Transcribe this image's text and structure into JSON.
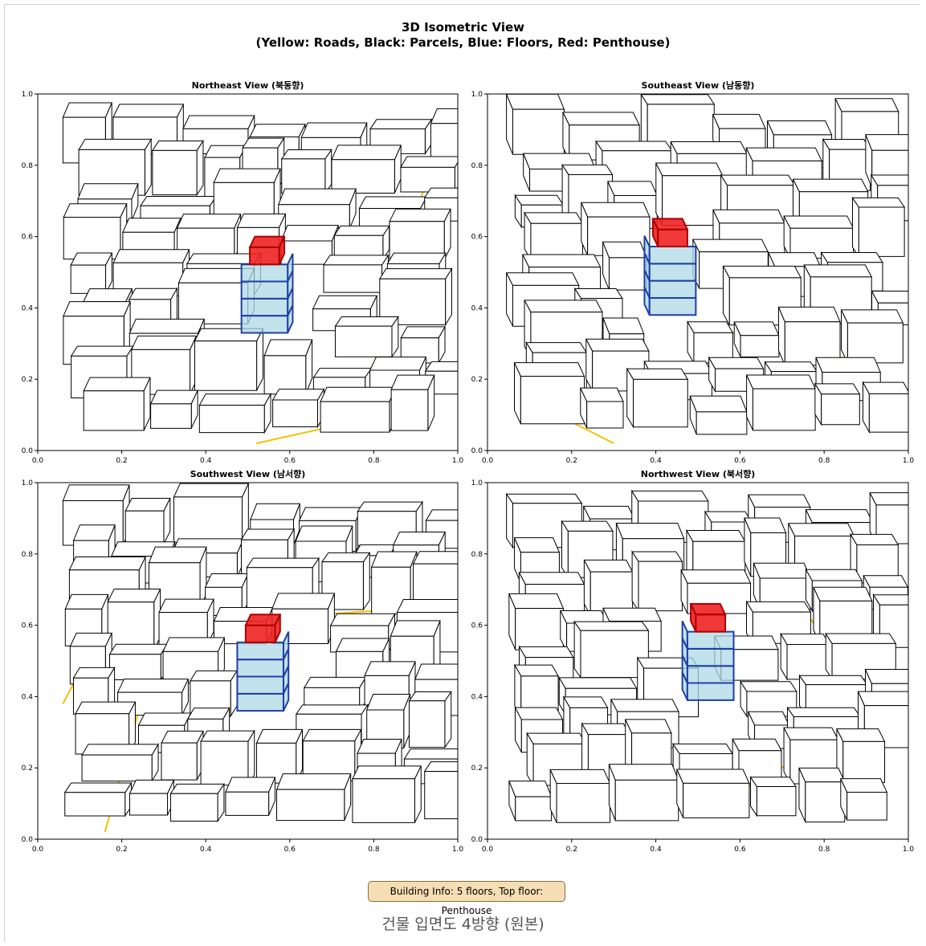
{
  "figure": {
    "title_line1": "3D Isometric View",
    "title_line2": "(Yellow: Roads, Black: Parcels, Blue: Floors, Red: Penthouse)"
  },
  "panels": [
    {
      "title": "Northeast View (북동향)"
    },
    {
      "title": "Southeast View (남동향)"
    },
    {
      "title": "Southwest View (남서향)"
    },
    {
      "title": "Northwest View (북서향)"
    }
  ],
  "axes": {
    "x_ticks": [
      "0.0",
      "0.2",
      "0.4",
      "0.6",
      "0.8",
      "1.0"
    ],
    "y_ticks": [
      "0.0",
      "0.2",
      "0.4",
      "0.6",
      "0.8",
      "1.0"
    ],
    "xlim": [
      0,
      1
    ],
    "ylim": [
      0,
      1
    ]
  },
  "colors": {
    "roads": "#f2c200",
    "parcels": "#000000",
    "floors_fill": "#add8e6",
    "floors_edge": "#1f3fa8",
    "penthouse_fill": "#ee2222",
    "penthouse_edge": "#b00000"
  },
  "info": {
    "badge": "Building Info: 5 floors, Top floor: Penthouse"
  },
  "caption": "건물 입면도 4방향 (원본)"
}
